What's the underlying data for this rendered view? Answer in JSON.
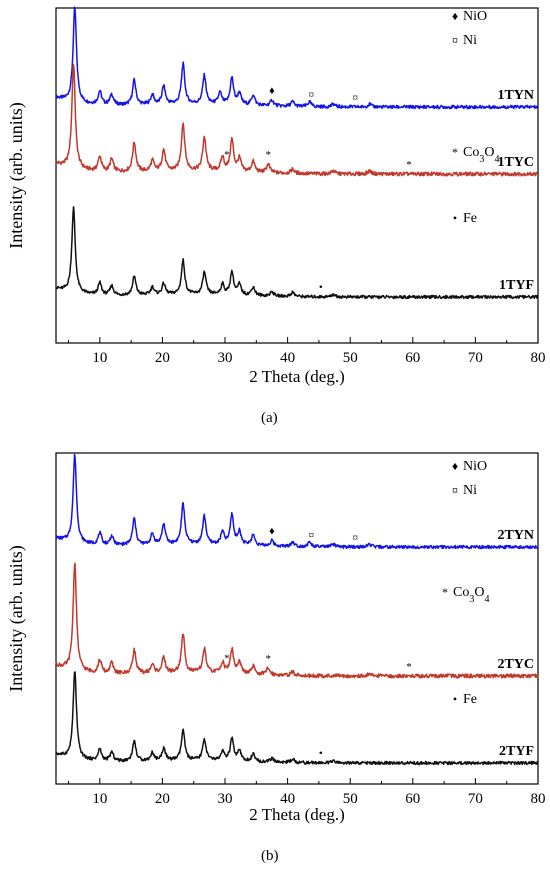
{
  "chart_data": [
    {
      "type": "line",
      "panel_label": "(a)",
      "panel_letter": "a",
      "xlabel": "2 Theta (deg.)",
      "ylabel": "Intensity (arb. units)",
      "xlim": [
        3,
        80
      ],
      "xticks": [
        "10",
        "20",
        "30",
        "40",
        "50",
        "60",
        "70",
        "80"
      ],
      "grid": false,
      "series": [
        {
          "name": "1TYN",
          "color": "#1414e6",
          "peaks": [
            {
              "x": 6.0,
              "h": 1.0
            },
            {
              "x": 10.0,
              "h": 0.14
            },
            {
              "x": 11.9,
              "h": 0.11
            },
            {
              "x": 15.5,
              "h": 0.26
            },
            {
              "x": 18.4,
              "h": 0.1
            },
            {
              "x": 20.2,
              "h": 0.19
            },
            {
              "x": 23.3,
              "h": 0.42
            },
            {
              "x": 26.7,
              "h": 0.3
            },
            {
              "x": 29.2,
              "h": 0.12
            },
            {
              "x": 31.1,
              "h": 0.28
            },
            {
              "x": 32.3,
              "h": 0.12
            },
            {
              "x": 34.5,
              "h": 0.11
            },
            {
              "x": 37.5,
              "h": 0.06
            },
            {
              "x": 40.8,
              "h": 0.05
            },
            {
              "x": 43.5,
              "h": 0.05
            },
            {
              "x": 47.3,
              "h": 0.03
            },
            {
              "x": 53.1,
              "h": 0.03
            }
          ]
        },
        {
          "name": "1TYC",
          "color": "#c0392b",
          "peaks": [
            {
              "x": 5.8,
              "h": 1.0
            },
            {
              "x": 10.0,
              "h": 0.14
            },
            {
              "x": 11.9,
              "h": 0.12
            },
            {
              "x": 15.5,
              "h": 0.28
            },
            {
              "x": 18.4,
              "h": 0.1
            },
            {
              "x": 20.2,
              "h": 0.2
            },
            {
              "x": 23.3,
              "h": 0.45
            },
            {
              "x": 26.7,
              "h": 0.32
            },
            {
              "x": 29.6,
              "h": 0.13
            },
            {
              "x": 31.1,
              "h": 0.3
            },
            {
              "x": 32.3,
              "h": 0.12
            },
            {
              "x": 34.5,
              "h": 0.1
            },
            {
              "x": 36.9,
              "h": 0.08
            },
            {
              "x": 40.8,
              "h": 0.04
            },
            {
              "x": 47.3,
              "h": 0.03
            },
            {
              "x": 53.1,
              "h": 0.03
            }
          ]
        },
        {
          "name": "1TYF",
          "color": "#111111",
          "peaks": [
            {
              "x": 5.8,
              "h": 1.0
            },
            {
              "x": 10.0,
              "h": 0.14
            },
            {
              "x": 11.9,
              "h": 0.11
            },
            {
              "x": 15.5,
              "h": 0.22
            },
            {
              "x": 18.4,
              "h": 0.09
            },
            {
              "x": 20.2,
              "h": 0.13
            },
            {
              "x": 23.3,
              "h": 0.4
            },
            {
              "x": 26.7,
              "h": 0.26
            },
            {
              "x": 29.6,
              "h": 0.12
            },
            {
              "x": 31.1,
              "h": 0.27
            },
            {
              "x": 32.3,
              "h": 0.12
            },
            {
              "x": 34.5,
              "h": 0.1
            },
            {
              "x": 37.5,
              "h": 0.05
            },
            {
              "x": 40.8,
              "h": 0.05
            },
            {
              "x": 47.3,
              "h": 0.03
            }
          ]
        }
      ],
      "legend": [
        {
          "symbol": "♦",
          "text": "NiO"
        },
        {
          "symbol": "¤",
          "text": "Ni"
        },
        {
          "symbol": "*",
          "text": "Co3O4"
        },
        {
          "symbol": "•",
          "text": "Fe"
        }
      ],
      "markers": [
        {
          "series": "1TYN",
          "symbol": "♦",
          "x": 37.5
        },
        {
          "series": "1TYN",
          "symbol": "¤",
          "x": 43.8
        },
        {
          "series": "1TYN",
          "symbol": "¤",
          "x": 50.8
        },
        {
          "series": "1TYC",
          "symbol": "*",
          "x": 30.3
        },
        {
          "series": "1TYC",
          "symbol": "*",
          "x": 36.9
        },
        {
          "series": "1TYC",
          "symbol": "*",
          "x": 59.4
        },
        {
          "series": "1TYF",
          "symbol": "•",
          "x": 45.3
        }
      ]
    },
    {
      "type": "line",
      "panel_label": "(b)",
      "panel_letter": "b",
      "xlabel": "2 Theta (deg.)",
      "ylabel": "Intensity (arb. units)",
      "xlim": [
        3,
        80
      ],
      "xticks": [
        "10",
        "20",
        "30",
        "40",
        "50",
        "60",
        "70",
        "80"
      ],
      "grid": false,
      "series": [
        {
          "name": "2TYN",
          "color": "#1414e6",
          "peaks": [
            {
              "x": 6.0,
              "h": 1.0
            },
            {
              "x": 10.0,
              "h": 0.13
            },
            {
              "x": 11.9,
              "h": 0.1
            },
            {
              "x": 15.5,
              "h": 0.3
            },
            {
              "x": 18.4,
              "h": 0.12
            },
            {
              "x": 20.2,
              "h": 0.23
            },
            {
              "x": 23.3,
              "h": 0.46
            },
            {
              "x": 26.7,
              "h": 0.32
            },
            {
              "x": 29.6,
              "h": 0.14
            },
            {
              "x": 31.1,
              "h": 0.34
            },
            {
              "x": 32.3,
              "h": 0.15
            },
            {
              "x": 34.5,
              "h": 0.12
            },
            {
              "x": 37.5,
              "h": 0.06
            },
            {
              "x": 40.8,
              "h": 0.05
            },
            {
              "x": 43.5,
              "h": 0.05
            },
            {
              "x": 47.3,
              "h": 0.03
            },
            {
              "x": 53.1,
              "h": 0.03
            }
          ]
        },
        {
          "name": "2TYC",
          "color": "#c0392b",
          "peaks": [
            {
              "x": 6.0,
              "h": 1.0
            },
            {
              "x": 10.0,
              "h": 0.12
            },
            {
              "x": 11.9,
              "h": 0.1
            },
            {
              "x": 15.5,
              "h": 0.22
            },
            {
              "x": 18.4,
              "h": 0.08
            },
            {
              "x": 20.2,
              "h": 0.14
            },
            {
              "x": 23.3,
              "h": 0.36
            },
            {
              "x": 26.7,
              "h": 0.22
            },
            {
              "x": 29.6,
              "h": 0.1
            },
            {
              "x": 31.1,
              "h": 0.22
            },
            {
              "x": 32.3,
              "h": 0.1
            },
            {
              "x": 34.5,
              "h": 0.07
            },
            {
              "x": 36.9,
              "h": 0.06
            },
            {
              "x": 40.8,
              "h": 0.03
            },
            {
              "x": 53.1,
              "h": 0.02
            }
          ]
        },
        {
          "name": "2TYF",
          "color": "#111111",
          "peaks": [
            {
              "x": 6.0,
              "h": 1.0
            },
            {
              "x": 10.0,
              "h": 0.13
            },
            {
              "x": 11.9,
              "h": 0.1
            },
            {
              "x": 15.5,
              "h": 0.23
            },
            {
              "x": 18.4,
              "h": 0.09
            },
            {
              "x": 20.2,
              "h": 0.14
            },
            {
              "x": 23.3,
              "h": 0.34
            },
            {
              "x": 26.7,
              "h": 0.24
            },
            {
              "x": 29.6,
              "h": 0.1
            },
            {
              "x": 31.1,
              "h": 0.25
            },
            {
              "x": 32.3,
              "h": 0.11
            },
            {
              "x": 34.5,
              "h": 0.08
            },
            {
              "x": 37.5,
              "h": 0.04
            },
            {
              "x": 40.8,
              "h": 0.04
            },
            {
              "x": 47.3,
              "h": 0.02
            }
          ]
        }
      ],
      "legend": [
        {
          "symbol": "♦",
          "text": "NiO"
        },
        {
          "symbol": "¤",
          "text": "Ni"
        },
        {
          "symbol": "*",
          "text": "Co3O4"
        },
        {
          "symbol": "•",
          "text": "Fe"
        }
      ],
      "markers": [
        {
          "series": "2TYN",
          "symbol": "♦",
          "x": 37.5
        },
        {
          "series": "2TYN",
          "symbol": "¤",
          "x": 43.8
        },
        {
          "series": "2TYN",
          "symbol": "¤",
          "x": 50.8
        },
        {
          "series": "2TYC",
          "symbol": "*",
          "x": 30.3
        },
        {
          "series": "2TYC",
          "symbol": "*",
          "x": 36.9
        },
        {
          "series": "2TYC",
          "symbol": "*",
          "x": 59.4
        },
        {
          "series": "2TYF",
          "symbol": "•",
          "x": 45.3
        }
      ]
    }
  ]
}
